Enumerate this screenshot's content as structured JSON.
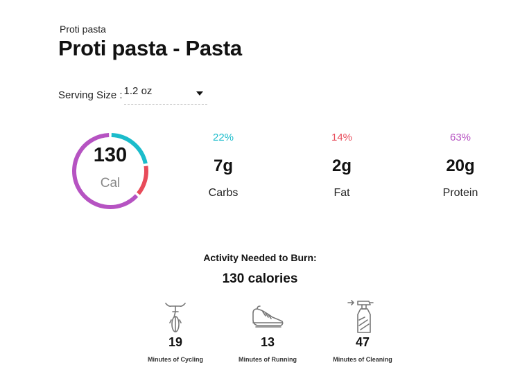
{
  "product": {
    "brand": "Proti pasta",
    "title": "Proti pasta - Pasta"
  },
  "serving": {
    "label": "Serving Size :",
    "value": "1.2 oz"
  },
  "calories": {
    "value": "130",
    "unit": "Cal",
    "ring_icon": "calorie-ring"
  },
  "macros": [
    {
      "pct": "22%",
      "grams": "7g",
      "name": "Carbs",
      "color": "#1bbccb",
      "fraction": 0.22
    },
    {
      "pct": "14%",
      "grams": "2g",
      "name": "Fat",
      "color": "#e84b5a",
      "fraction": 0.14
    },
    {
      "pct": "63%",
      "grams": "20g",
      "name": "Protein",
      "color": "#b653c2",
      "fraction": 0.63
    }
  ],
  "activity": {
    "heading": "Activity Needed to Burn:",
    "calories": "130 calories",
    "items": [
      {
        "value": "19",
        "label": "Minutes of Cycling",
        "icon": "bicycle-icon"
      },
      {
        "value": "13",
        "label": "Minutes of Running",
        "icon": "running-shoe-icon"
      },
      {
        "value": "47",
        "label": "Minutes of Cleaning",
        "icon": "spray-bottle-icon"
      }
    ]
  }
}
